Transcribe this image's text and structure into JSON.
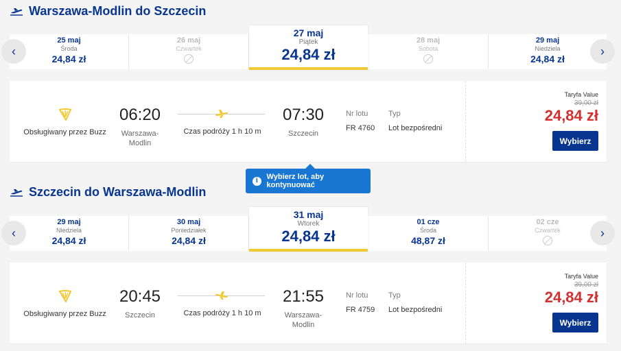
{
  "outbound": {
    "title": "Warszawa-Modlin do Szczecin",
    "dates": [
      {
        "date": "25 maj",
        "day": "Środa",
        "price": "24,84 zł",
        "available": true
      },
      {
        "date": "26 maj",
        "day": "Czwartek",
        "price": "",
        "available": false
      },
      {
        "date": "27 maj",
        "day": "Piątek",
        "price": "24,84 zł",
        "available": true,
        "selected": true
      },
      {
        "date": "28 maj",
        "day": "Sobota",
        "price": "",
        "available": false
      },
      {
        "date": "29 maj",
        "day": "Niedziela",
        "price": "24,84 zł",
        "available": true
      }
    ],
    "flight": {
      "operator": "Obsługiwany przez Buzz",
      "dep_time": "06:20",
      "dep_city": "Warszawa-Modlin",
      "arr_time": "07:30",
      "arr_city": "Szczecin",
      "duration": "Czas podróży 1 h 10 m",
      "flight_no_label": "Nr lotu",
      "flight_no": "FR 4760",
      "type_label": "Typ",
      "type": "Lot bezpośredni",
      "fare_label": "Taryfa Value",
      "fare_old": "39,00 zł",
      "fare_price": "24,84 zł",
      "select_label": "Wybierz"
    }
  },
  "tooltip": "Wybierz lot, aby kontynuować",
  "inbound": {
    "title": "Szczecin do Warszawa-Modlin",
    "dates": [
      {
        "date": "29 maj",
        "day": "Niedziela",
        "price": "24,84 zł",
        "available": true
      },
      {
        "date": "30 maj",
        "day": "Poniedziałek",
        "price": "24,84 zł",
        "available": true
      },
      {
        "date": "31 maj",
        "day": "Wtorek",
        "price": "24,84 zł",
        "available": true,
        "selected": true
      },
      {
        "date": "01 cze",
        "day": "Środa",
        "price": "48,87 zł",
        "available": true
      },
      {
        "date": "02 cze",
        "day": "Czwartek",
        "price": "",
        "available": false
      }
    ],
    "flight": {
      "operator": "Obsługiwany przez Buzz",
      "dep_time": "20:45",
      "dep_city": "Szczecin",
      "arr_time": "21:55",
      "arr_city": "Warszawa-Modlin",
      "duration": "Czas podróży 1 h 10 m",
      "flight_no_label": "Nr lotu",
      "flight_no": "FR 4759",
      "type_label": "Typ",
      "type": "Lot bezpośredni",
      "fare_label": "Taryfa Value",
      "fare_old": "39,00 zł",
      "fare_price": "24,84 zł",
      "select_label": "Wybierz"
    }
  },
  "colors": {
    "brand": "#073590",
    "accent": "#f1c933",
    "price": "#d32f2f",
    "tooltip": "#1976d2"
  }
}
